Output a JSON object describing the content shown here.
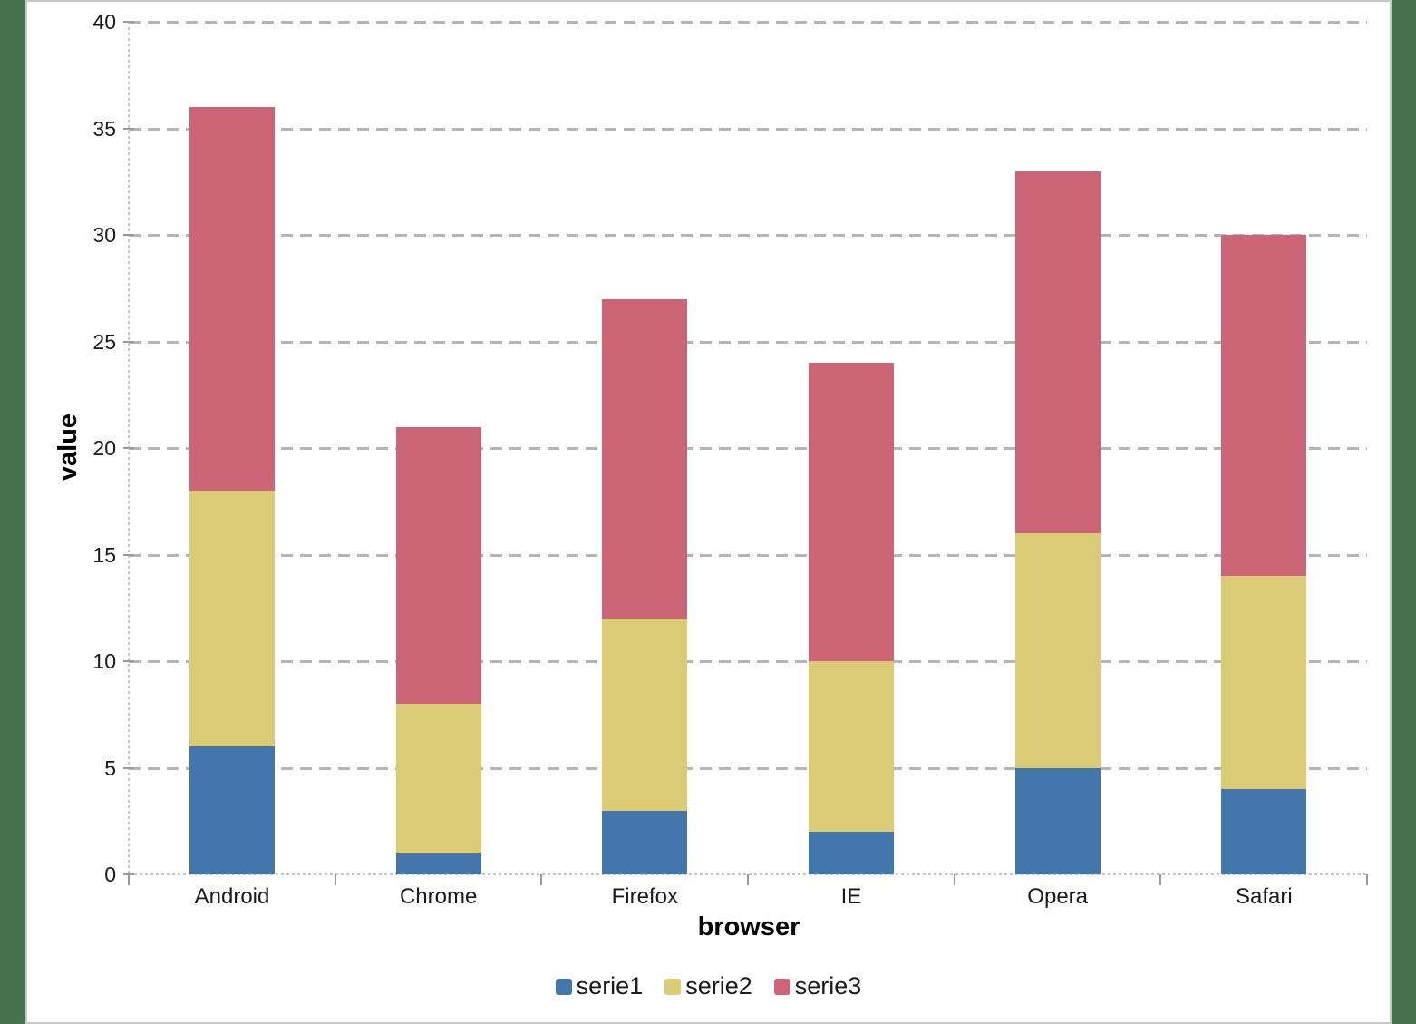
{
  "page": {
    "background_color": "#47714c",
    "panel_background": "#ffffff",
    "panel_border_color": "#c8c8c8"
  },
  "chart_data": {
    "type": "bar",
    "stacked": true,
    "title": "",
    "xlabel": "browser",
    "ylabel": "value",
    "categories": [
      "Android",
      "Chrome",
      "Firefox",
      "IE",
      "Opera",
      "Safari"
    ],
    "series": [
      {
        "name": "serie1",
        "color": "#4377ab",
        "values": [
          6,
          1,
          3,
          2,
          5,
          4
        ]
      },
      {
        "name": "serie2",
        "color": "#dbcb74",
        "values": [
          12,
          7,
          9,
          8,
          11,
          10
        ]
      },
      {
        "name": "serie3",
        "color": "#cc6575",
        "values": [
          18,
          13,
          15,
          14,
          17,
          16
        ]
      }
    ],
    "ylim": [
      0,
      40
    ],
    "yticks": [
      0,
      5,
      10,
      15,
      20,
      25,
      30,
      35,
      40
    ],
    "grid": "horizontal-dashed",
    "gridline_color": "#b5b5b5",
    "axis_line_color": "#c6c6c6",
    "tick_mark_color": "#9a9a9a",
    "tick_label_color": "#1a1a1a",
    "axis_title_color": "#000000",
    "legend_position": "bottom",
    "legend": [
      "serie1",
      "serie2",
      "serie3"
    ]
  }
}
